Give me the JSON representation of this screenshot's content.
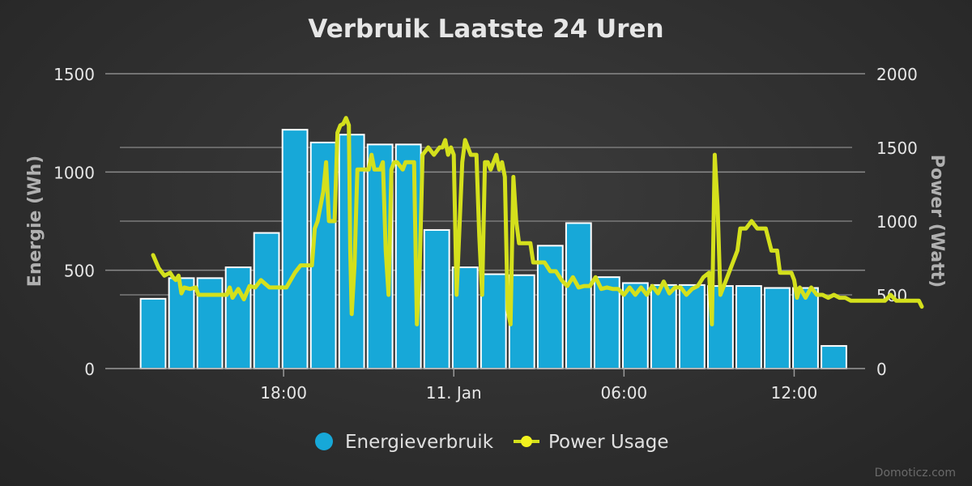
{
  "chart_data": {
    "type": "bar+line",
    "title": "Verbruik Laatste 24 Uren",
    "left_axis": {
      "label": "Energie (Wh)",
      "min": 0,
      "max": 1500,
      "ticks": [
        "0",
        "500",
        "1000",
        "1500"
      ]
    },
    "right_axis": {
      "label": "Power (Watt)",
      "min": 0,
      "max": 2000,
      "ticks": [
        "0",
        "500",
        "1000",
        "1500",
        "2000"
      ]
    },
    "x_ticks": [
      "18:00",
      "11. Jan",
      "06:00",
      "12:00"
    ],
    "x_tick_hours": [
      18,
      24,
      30,
      36
    ],
    "x_range_hours": [
      12,
      38.5
    ],
    "legend_position": "bottom",
    "grid": true,
    "colors": {
      "bar": "#17a8d8",
      "bar_border": "#ffffff",
      "line": "#d4e01c",
      "line_legend_dot": "#f2f21e"
    },
    "series": [
      {
        "name": "Energieverbruik",
        "type": "bar",
        "axis": "left",
        "hours": [
          13.4,
          14.4,
          15.4,
          16.4,
          17.4,
          18.4,
          19.4,
          20.4,
          21.4,
          22.4,
          23.4,
          24.4,
          25.4,
          26.4,
          27.4,
          28.4,
          29.4,
          30.4,
          31.4,
          32.4,
          33.4,
          34.4,
          35.4,
          36.4,
          37.4
        ],
        "values": [
          355,
          460,
          460,
          515,
          690,
          1215,
          1150,
          1190,
          1140,
          1140,
          705,
          515,
          480,
          475,
          625,
          740,
          465,
          435,
          425,
          425,
          420,
          420,
          410,
          410,
          115
        ]
      },
      {
        "name": "Power Usage",
        "type": "line",
        "axis": "right",
        "points": [
          [
            13.4,
            770
          ],
          [
            13.6,
            680
          ],
          [
            13.8,
            630
          ],
          [
            14.0,
            650
          ],
          [
            14.1,
            620
          ],
          [
            14.2,
            600
          ],
          [
            14.3,
            630
          ],
          [
            14.4,
            510
          ],
          [
            14.5,
            550
          ],
          [
            14.7,
            540
          ],
          [
            14.9,
            550
          ],
          [
            15.0,
            500
          ],
          [
            15.3,
            500
          ],
          [
            15.6,
            500
          ],
          [
            15.8,
            500
          ],
          [
            16.0,
            500
          ],
          [
            16.1,
            550
          ],
          [
            16.2,
            480
          ],
          [
            16.4,
            540
          ],
          [
            16.6,
            470
          ],
          [
            16.8,
            560
          ],
          [
            17.0,
            550
          ],
          [
            17.2,
            600
          ],
          [
            17.5,
            550
          ],
          [
            17.8,
            550
          ],
          [
            18.1,
            550
          ],
          [
            18.4,
            650
          ],
          [
            18.6,
            700
          ],
          [
            18.9,
            700
          ],
          [
            19.0,
            700
          ],
          [
            19.1,
            950
          ],
          [
            19.2,
            1000
          ],
          [
            19.3,
            1100
          ],
          [
            19.4,
            1200
          ],
          [
            19.5,
            1400
          ],
          [
            19.6,
            1000
          ],
          [
            19.8,
            1000
          ],
          [
            19.9,
            1600
          ],
          [
            20.0,
            1650
          ],
          [
            20.1,
            1660
          ],
          [
            20.2,
            1700
          ],
          [
            20.3,
            1650
          ],
          [
            20.35,
            800
          ],
          [
            20.4,
            370
          ],
          [
            20.5,
            700
          ],
          [
            20.6,
            1350
          ],
          [
            20.8,
            1350
          ],
          [
            21.0,
            1350
          ],
          [
            21.1,
            1450
          ],
          [
            21.2,
            1350
          ],
          [
            21.4,
            1350
          ],
          [
            21.5,
            1400
          ],
          [
            21.6,
            800
          ],
          [
            21.7,
            500
          ],
          [
            21.8,
            1350
          ],
          [
            21.9,
            1400
          ],
          [
            22.0,
            1400
          ],
          [
            22.2,
            1350
          ],
          [
            22.3,
            1400
          ],
          [
            22.5,
            1400
          ],
          [
            22.6,
            1400
          ],
          [
            22.7,
            300
          ],
          [
            22.8,
            700
          ],
          [
            22.9,
            1450
          ],
          [
            23.1,
            1500
          ],
          [
            23.3,
            1450
          ],
          [
            23.5,
            1500
          ],
          [
            23.6,
            1500
          ],
          [
            23.7,
            1550
          ],
          [
            23.8,
            1450
          ],
          [
            23.9,
            1500
          ],
          [
            24.0,
            1450
          ],
          [
            24.1,
            500
          ],
          [
            24.3,
            1400
          ],
          [
            24.4,
            1550
          ],
          [
            24.5,
            1500
          ],
          [
            24.6,
            1450
          ],
          [
            24.8,
            1450
          ],
          [
            24.9,
            900
          ],
          [
            25.0,
            500
          ],
          [
            25.1,
            1400
          ],
          [
            25.2,
            1400
          ],
          [
            25.3,
            1350
          ],
          [
            25.4,
            1400
          ],
          [
            25.5,
            1450
          ],
          [
            25.6,
            1350
          ],
          [
            25.7,
            1400
          ],
          [
            25.8,
            1300
          ],
          [
            25.9,
            400
          ],
          [
            26.0,
            300
          ],
          [
            26.1,
            1300
          ],
          [
            26.2,
            1000
          ],
          [
            26.3,
            850
          ],
          [
            26.5,
            850
          ],
          [
            26.7,
            850
          ],
          [
            26.8,
            720
          ],
          [
            27.0,
            720
          ],
          [
            27.2,
            720
          ],
          [
            27.4,
            660
          ],
          [
            27.6,
            660
          ],
          [
            27.8,
            600
          ],
          [
            28.0,
            560
          ],
          [
            28.2,
            620
          ],
          [
            28.4,
            550
          ],
          [
            28.6,
            560
          ],
          [
            28.8,
            560
          ],
          [
            29.0,
            620
          ],
          [
            29.2,
            540
          ],
          [
            29.4,
            550
          ],
          [
            29.6,
            540
          ],
          [
            29.8,
            540
          ],
          [
            30.0,
            500
          ],
          [
            30.2,
            550
          ],
          [
            30.4,
            500
          ],
          [
            30.6,
            550
          ],
          [
            30.8,
            500
          ],
          [
            31.0,
            560
          ],
          [
            31.2,
            510
          ],
          [
            31.4,
            590
          ],
          [
            31.6,
            510
          ],
          [
            31.8,
            550
          ],
          [
            32.0,
            550
          ],
          [
            32.2,
            500
          ],
          [
            32.4,
            540
          ],
          [
            32.6,
            560
          ],
          [
            32.8,
            620
          ],
          [
            33.0,
            650
          ],
          [
            33.1,
            300
          ],
          [
            33.2,
            1450
          ],
          [
            33.3,
            1100
          ],
          [
            33.4,
            500
          ],
          [
            33.6,
            600
          ],
          [
            33.8,
            700
          ],
          [
            34.0,
            800
          ],
          [
            34.1,
            950
          ],
          [
            34.3,
            950
          ],
          [
            34.5,
            1000
          ],
          [
            34.7,
            950
          ],
          [
            35.0,
            950
          ],
          [
            35.2,
            800
          ],
          [
            35.4,
            800
          ],
          [
            35.5,
            650
          ],
          [
            35.7,
            650
          ],
          [
            35.9,
            650
          ],
          [
            36.0,
            600
          ],
          [
            36.1,
            480
          ],
          [
            36.2,
            550
          ],
          [
            36.4,
            480
          ],
          [
            36.6,
            550
          ],
          [
            36.8,
            500
          ],
          [
            37.0,
            500
          ],
          [
            37.2,
            480
          ],
          [
            37.4,
            500
          ],
          [
            37.6,
            480
          ],
          [
            37.8,
            480
          ],
          [
            38.0,
            460
          ],
          [
            38.2,
            460
          ],
          [
            38.4,
            460
          ],
          [
            38.6,
            460
          ],
          [
            38.8,
            460
          ],
          [
            39.0,
            460
          ],
          [
            39.2,
            460
          ],
          [
            39.4,
            500
          ],
          [
            39.6,
            460
          ],
          [
            39.8,
            460
          ],
          [
            40.0,
            460
          ],
          [
            40.2,
            460
          ],
          [
            40.4,
            460
          ],
          [
            40.5,
            420
          ]
        ]
      }
    ]
  },
  "footer": {
    "credit": "Domoticz.com"
  }
}
